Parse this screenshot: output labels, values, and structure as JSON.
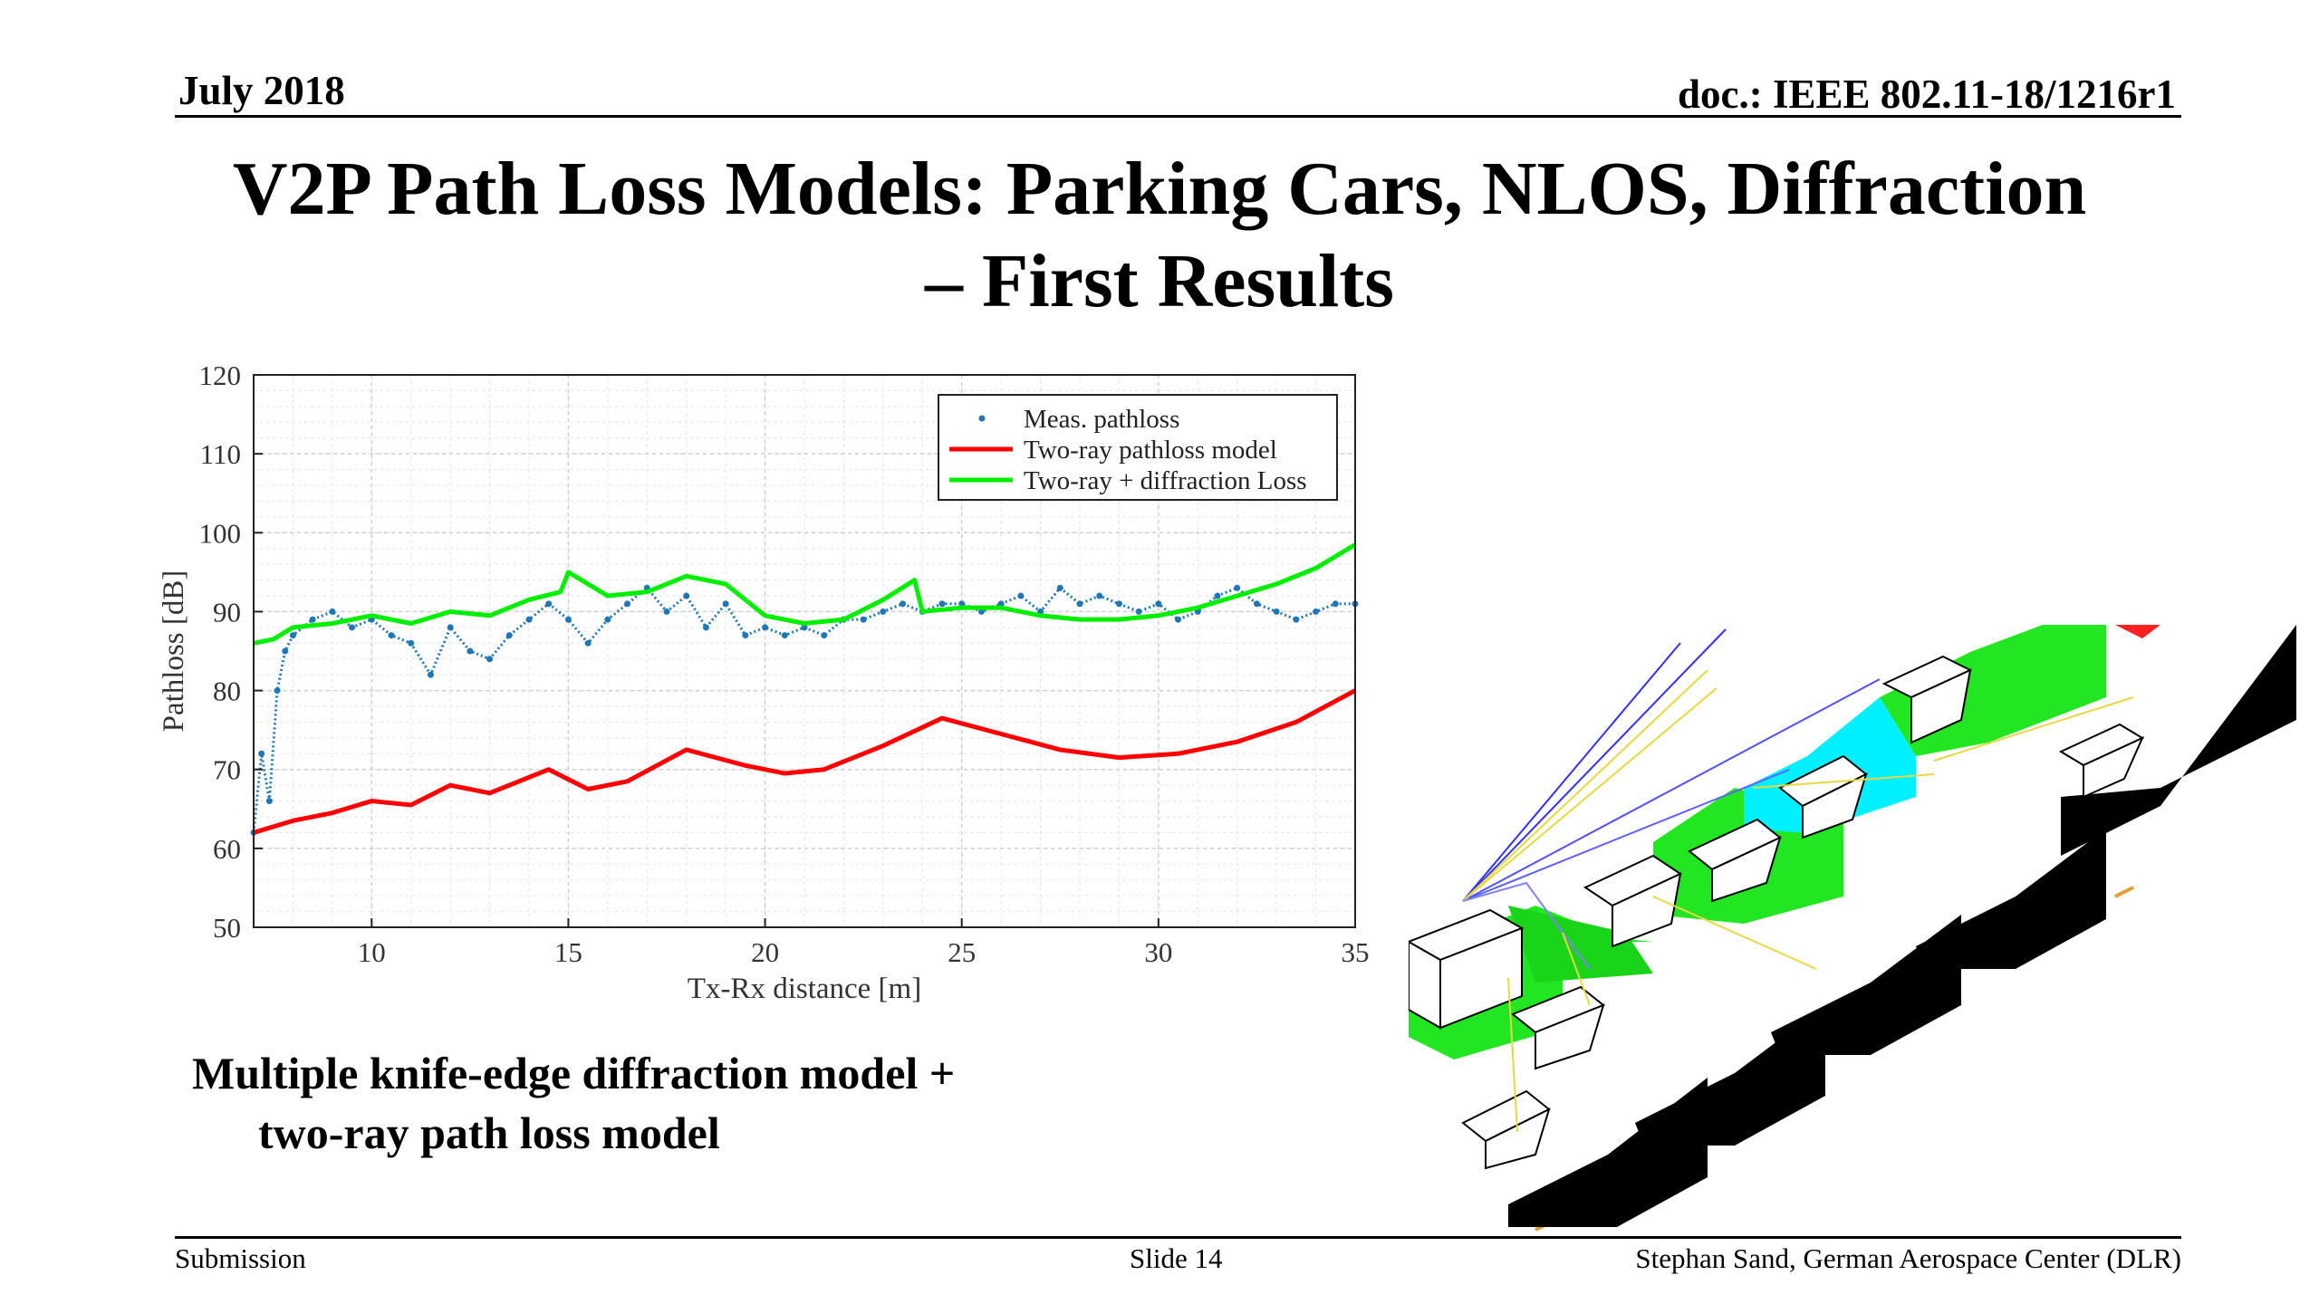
{
  "header": {
    "date": "July 2018",
    "doc": "doc.: IEEE 802.11-18/1216r1"
  },
  "title": {
    "line1": "V2P Path Loss Models: Parking Cars, NLOS, Diffraction",
    "line2": "– First Results"
  },
  "chart_data": {
    "type": "line",
    "xlabel": "Tx-Rx distance [m]",
    "ylabel": "Pathloss [dB]",
    "xlim": [
      7,
      35
    ],
    "ylim": [
      50,
      120
    ],
    "xticks": [
      10,
      15,
      20,
      25,
      30,
      35
    ],
    "yticks": [
      50,
      60,
      70,
      80,
      90,
      100,
      110,
      120
    ],
    "grid": true,
    "legend_position": "top-right",
    "series": [
      {
        "name": "Meas. pathloss",
        "style": "scatter",
        "color": "#1f77b4",
        "x": [
          7.0,
          7.2,
          7.4,
          7.6,
          7.8,
          8.0,
          8.5,
          9.0,
          9.5,
          10.0,
          10.5,
          11.0,
          11.5,
          12.0,
          12.5,
          13.0,
          13.5,
          14.0,
          14.5,
          15.0,
          15.5,
          16.0,
          16.5,
          17.0,
          17.5,
          18.0,
          18.5,
          19.0,
          19.5,
          20.0,
          20.5,
          21.0,
          21.5,
          22.0,
          22.5,
          23.0,
          23.5,
          24.0,
          24.5,
          25.0,
          25.5,
          26.0,
          26.5,
          27.0,
          27.5,
          28.0,
          28.5,
          29.0,
          29.5,
          30.0,
          30.5,
          31.0,
          31.5,
          32.0,
          32.5,
          33.0,
          33.5,
          34.0,
          34.5,
          35.0
        ],
        "y": [
          62,
          72,
          66,
          80,
          85,
          87,
          89,
          90,
          88,
          89,
          87,
          86,
          82,
          88,
          85,
          84,
          87,
          89,
          91,
          89,
          86,
          89,
          91,
          93,
          90,
          92,
          88,
          91,
          87,
          88,
          87,
          88,
          87,
          89,
          89,
          90,
          91,
          90,
          91,
          91,
          90,
          91,
          92,
          90,
          93,
          91,
          92,
          91,
          90,
          91,
          89,
          90,
          92,
          93,
          91,
          90,
          89,
          90,
          91,
          91
        ]
      },
      {
        "name": "Two-ray pathloss model",
        "style": "line",
        "color": "#ff0000",
        "x": [
          7.0,
          8.0,
          9.0,
          10.0,
          11.0,
          12.0,
          13.0,
          14.5,
          15.5,
          16.5,
          18.0,
          19.5,
          20.5,
          21.5,
          23.0,
          24.5,
          26.0,
          27.5,
          29.0,
          30.5,
          32.0,
          33.5,
          35.0
        ],
        "y": [
          62.0,
          63.5,
          64.5,
          66.0,
          65.5,
          68.0,
          67.0,
          70.0,
          67.5,
          68.5,
          72.5,
          70.5,
          69.5,
          70.0,
          73.0,
          76.5,
          74.5,
          72.5,
          71.5,
          72.0,
          73.5,
          76.0,
          80.0
        ]
      },
      {
        "name": "Two-ray + diffraction Loss",
        "style": "line",
        "color": "#00ee00",
        "x": [
          7.0,
          7.5,
          8.0,
          9.0,
          10.0,
          11.0,
          12.0,
          13.0,
          14.0,
          14.8,
          15.0,
          16.0,
          17.0,
          18.0,
          19.0,
          20.0,
          21.0,
          22.0,
          23.0,
          23.8,
          24.0,
          25.0,
          26.0,
          27.0,
          28.0,
          29.0,
          30.0,
          31.0,
          32.0,
          33.0,
          34.0,
          35.0
        ],
        "y": [
          86.0,
          86.5,
          88.0,
          88.5,
          89.5,
          88.5,
          90.0,
          89.5,
          91.5,
          92.5,
          95.0,
          92.0,
          92.5,
          94.5,
          93.5,
          89.5,
          88.5,
          89.0,
          91.5,
          94.0,
          90.0,
          90.5,
          90.5,
          89.5,
          89.0,
          89.0,
          89.5,
          90.5,
          92.0,
          93.5,
          95.5,
          98.5
        ]
      }
    ]
  },
  "caption": {
    "line1": "Multiple knife-edge diffraction model +",
    "line2": "two-ray path loss model"
  },
  "footer": {
    "left": "Submission",
    "center": "Slide 14",
    "right": "Stephan Sand, German Aerospace Center (DLR)"
  }
}
